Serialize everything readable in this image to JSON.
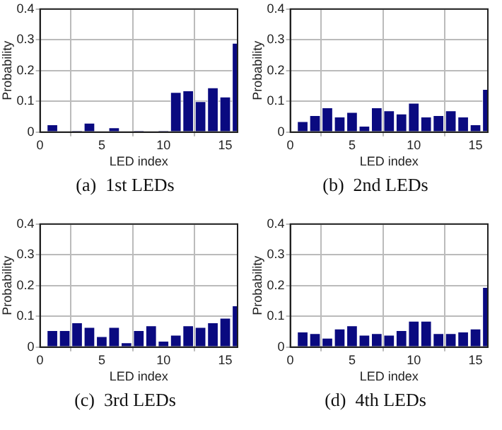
{
  "chart_data": [
    {
      "type": "bar",
      "title": "(a)  1st LEDs",
      "xlabel": "LED index",
      "ylabel": "Probability",
      "x": [
        1,
        2,
        3,
        4,
        5,
        6,
        7,
        8,
        9,
        10,
        11,
        12,
        13,
        14,
        15,
        16
      ],
      "values": [
        0.025,
        0,
        0.005,
        0.03,
        0,
        0.015,
        0,
        0.005,
        0,
        0.005,
        0.13,
        0.135,
        0.1,
        0.145,
        0.115,
        0.29
      ],
      "color": "#0a0a80",
      "xlim": [
        0,
        16
      ],
      "xticks": [
        0,
        5,
        10,
        15
      ],
      "ylim": [
        0,
        0.4
      ],
      "yticks": [
        0,
        0.1,
        0.2,
        0.3,
        0.4
      ],
      "grid": true
    },
    {
      "type": "bar",
      "title": "(b)  2nd LEDs",
      "xlabel": "LED index",
      "ylabel": "Probability",
      "x": [
        1,
        2,
        3,
        4,
        5,
        6,
        7,
        8,
        9,
        10,
        11,
        12,
        13,
        14,
        15,
        16
      ],
      "values": [
        0.035,
        0.055,
        0.08,
        0.05,
        0.065,
        0.02,
        0.08,
        0.07,
        0.06,
        0.095,
        0.05,
        0.055,
        0.07,
        0.05,
        0.025,
        0.14
      ],
      "color": "#0a0a80",
      "xlim": [
        0,
        16
      ],
      "xticks": [
        0,
        5,
        10,
        15
      ],
      "ylim": [
        0,
        0.4
      ],
      "yticks": [
        0,
        0.1,
        0.2,
        0.3,
        0.4
      ],
      "grid": true
    },
    {
      "type": "bar",
      "title": "(c)  3rd LEDs",
      "xlabel": "LED index",
      "ylabel": "Probability",
      "x": [
        1,
        2,
        3,
        4,
        5,
        6,
        7,
        8,
        9,
        10,
        11,
        12,
        13,
        14,
        15,
        16
      ],
      "values": [
        0.055,
        0.055,
        0.08,
        0.065,
        0.035,
        0.065,
        0.015,
        0.055,
        0.07,
        0.02,
        0.04,
        0.07,
        0.065,
        0.08,
        0.095,
        0.135
      ],
      "color": "#0a0a80",
      "xlim": [
        0,
        16
      ],
      "xticks": [
        0,
        5,
        10,
        15
      ],
      "ylim": [
        0,
        0.4
      ],
      "yticks": [
        0,
        0.1,
        0.2,
        0.3,
        0.4
      ],
      "grid": true
    },
    {
      "type": "bar",
      "title": "(d)  4th LEDs",
      "xlabel": "LED index",
      "ylabel": "Probability",
      "x": [
        1,
        2,
        3,
        4,
        5,
        6,
        7,
        8,
        9,
        10,
        11,
        12,
        13,
        14,
        15,
        16
      ],
      "values": [
        0.05,
        0.045,
        0.03,
        0.06,
        0.07,
        0.04,
        0.045,
        0.04,
        0.055,
        0.085,
        0.085,
        0.045,
        0.045,
        0.05,
        0.06,
        0.195
      ],
      "color": "#0a0a80",
      "xlim": [
        0,
        16
      ],
      "xticks": [
        0,
        5,
        10,
        15
      ],
      "ylim": [
        0,
        0.4
      ],
      "yticks": [
        0,
        0.1,
        0.2,
        0.3,
        0.4
      ],
      "grid": true
    }
  ]
}
